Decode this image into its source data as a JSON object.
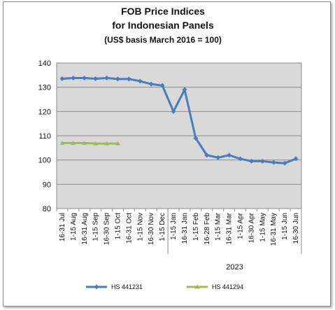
{
  "chart_data": {
    "type": "line",
    "title_lines": [
      "FOB Price Indices",
      "for Indonesian Panels",
      "(US$ basis March 2016 = 100)"
    ],
    "categories": [
      "16-31 Jul",
      "1-15 Aug",
      "16-31 Aug",
      "1-15 Sep",
      "16-30 Sep",
      "1-15 Oct",
      "16-31 Oct",
      "1-15 Nov",
      "16-30 Nov",
      "1-15 Dec",
      "1-15 Jan",
      "16-31 Jan",
      "1-15 Feb",
      "16-28 Feb",
      "1-15 Mar",
      "16-31 Mar",
      "1-15 Apr",
      "16-30 Apr",
      "1-15 May",
      "16-31 May",
      "1-15 Jun",
      "16-30 Jun"
    ],
    "year_group": {
      "label": "2023",
      "start_index": 10
    },
    "ylim": [
      80,
      140
    ],
    "yticks": [
      80,
      90,
      100,
      110,
      120,
      130,
      140
    ],
    "grid": true,
    "legend_position": "bottom",
    "series": [
      {
        "name": "HS 441231",
        "color": "#4a7ebb",
        "marker": "diamond",
        "values": [
          133.5,
          133.8,
          133.8,
          133.5,
          133.8,
          133.4,
          133.4,
          132.5,
          131.3,
          130.7,
          120.0,
          129.0,
          109.0,
          102.0,
          101.0,
          102.0,
          100.5,
          99.5,
          99.5,
          99.0,
          98.7,
          100.5
        ]
      },
      {
        "name": "HS 441294",
        "color": "#9bbb59",
        "marker": "triangle",
        "values": [
          107.0,
          107.0,
          107.0,
          106.8,
          106.8,
          106.8,
          null,
          null,
          null,
          null,
          null,
          null,
          null,
          null,
          null,
          null,
          null,
          null,
          null,
          null,
          null,
          null
        ]
      }
    ]
  }
}
